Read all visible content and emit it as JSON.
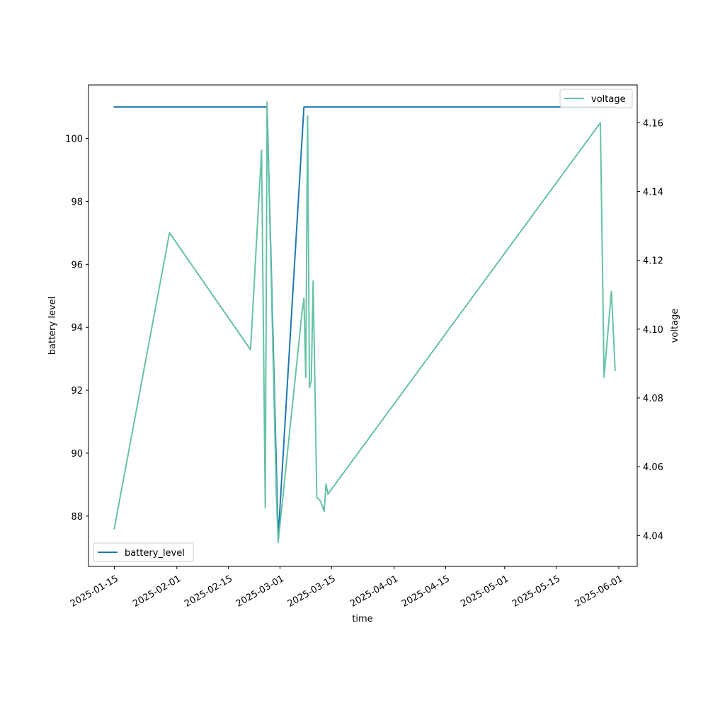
{
  "chart_data": {
    "type": "line",
    "xlabel": "time",
    "ylabel_left": "battery level",
    "ylabel_right": "voltage",
    "x_range": [
      "2025-01-08",
      "2025-06-06"
    ],
    "ylim_left": [
      86.4,
      101.7
    ],
    "ylim_right": [
      4.031,
      4.171
    ],
    "grid": false,
    "x_ticks": [
      "2025-01-15",
      "2025-02-01",
      "2025-02-15",
      "2025-03-01",
      "2025-03-15",
      "2025-04-01",
      "2025-04-15",
      "2025-05-01",
      "2025-05-15",
      "2025-06-01"
    ],
    "y_ticks_left": [
      "88",
      "90",
      "92",
      "94",
      "96",
      "98",
      "100"
    ],
    "y_ticks_right": [
      "4.04",
      "4.06",
      "4.08",
      "4.10",
      "4.12",
      "4.14",
      "4.16"
    ],
    "series": [
      {
        "name": "battery_level",
        "axis": "left",
        "color": "#1f77b4",
        "legend_position": "lower-left",
        "points": [
          [
            "2025-01-15",
            101.0
          ],
          [
            "2025-02-25",
            101.0
          ],
          [
            "2025-02-25T12:00",
            101.0
          ],
          [
            "2025-02-28T12:00",
            87.3
          ],
          [
            "2025-03-07T12:00",
            101.0
          ],
          [
            "2025-05-31",
            101.0
          ]
        ]
      },
      {
        "name": "voltage",
        "axis": "right",
        "color": "#66c2a5",
        "legend_position": "upper-right",
        "points": [
          [
            "2025-01-15",
            4.042
          ],
          [
            "2025-01-30",
            4.128
          ],
          [
            "2025-02-21",
            4.094
          ],
          [
            "2025-02-24",
            4.152
          ],
          [
            "2025-02-25",
            4.048
          ],
          [
            "2025-02-25T12:00",
            4.166
          ],
          [
            "2025-02-28",
            4.052
          ],
          [
            "2025-02-28T12:00",
            4.038
          ],
          [
            "2025-03-07",
            4.105
          ],
          [
            "2025-03-07T12:00",
            4.109
          ],
          [
            "2025-03-08",
            4.086
          ],
          [
            "2025-03-08T12:00",
            4.162
          ],
          [
            "2025-03-09",
            4.083
          ],
          [
            "2025-03-09T12:00",
            4.085
          ],
          [
            "2025-03-10",
            4.114
          ],
          [
            "2025-03-11",
            4.051
          ],
          [
            "2025-03-12",
            4.05
          ],
          [
            "2025-03-13",
            4.047
          ],
          [
            "2025-03-13T12:00",
            4.055
          ],
          [
            "2025-03-14",
            4.052
          ],
          [
            "2025-05-27",
            4.16
          ],
          [
            "2025-05-28",
            4.086
          ],
          [
            "2025-05-30",
            4.111
          ],
          [
            "2025-05-31",
            4.088
          ]
        ]
      }
    ]
  }
}
